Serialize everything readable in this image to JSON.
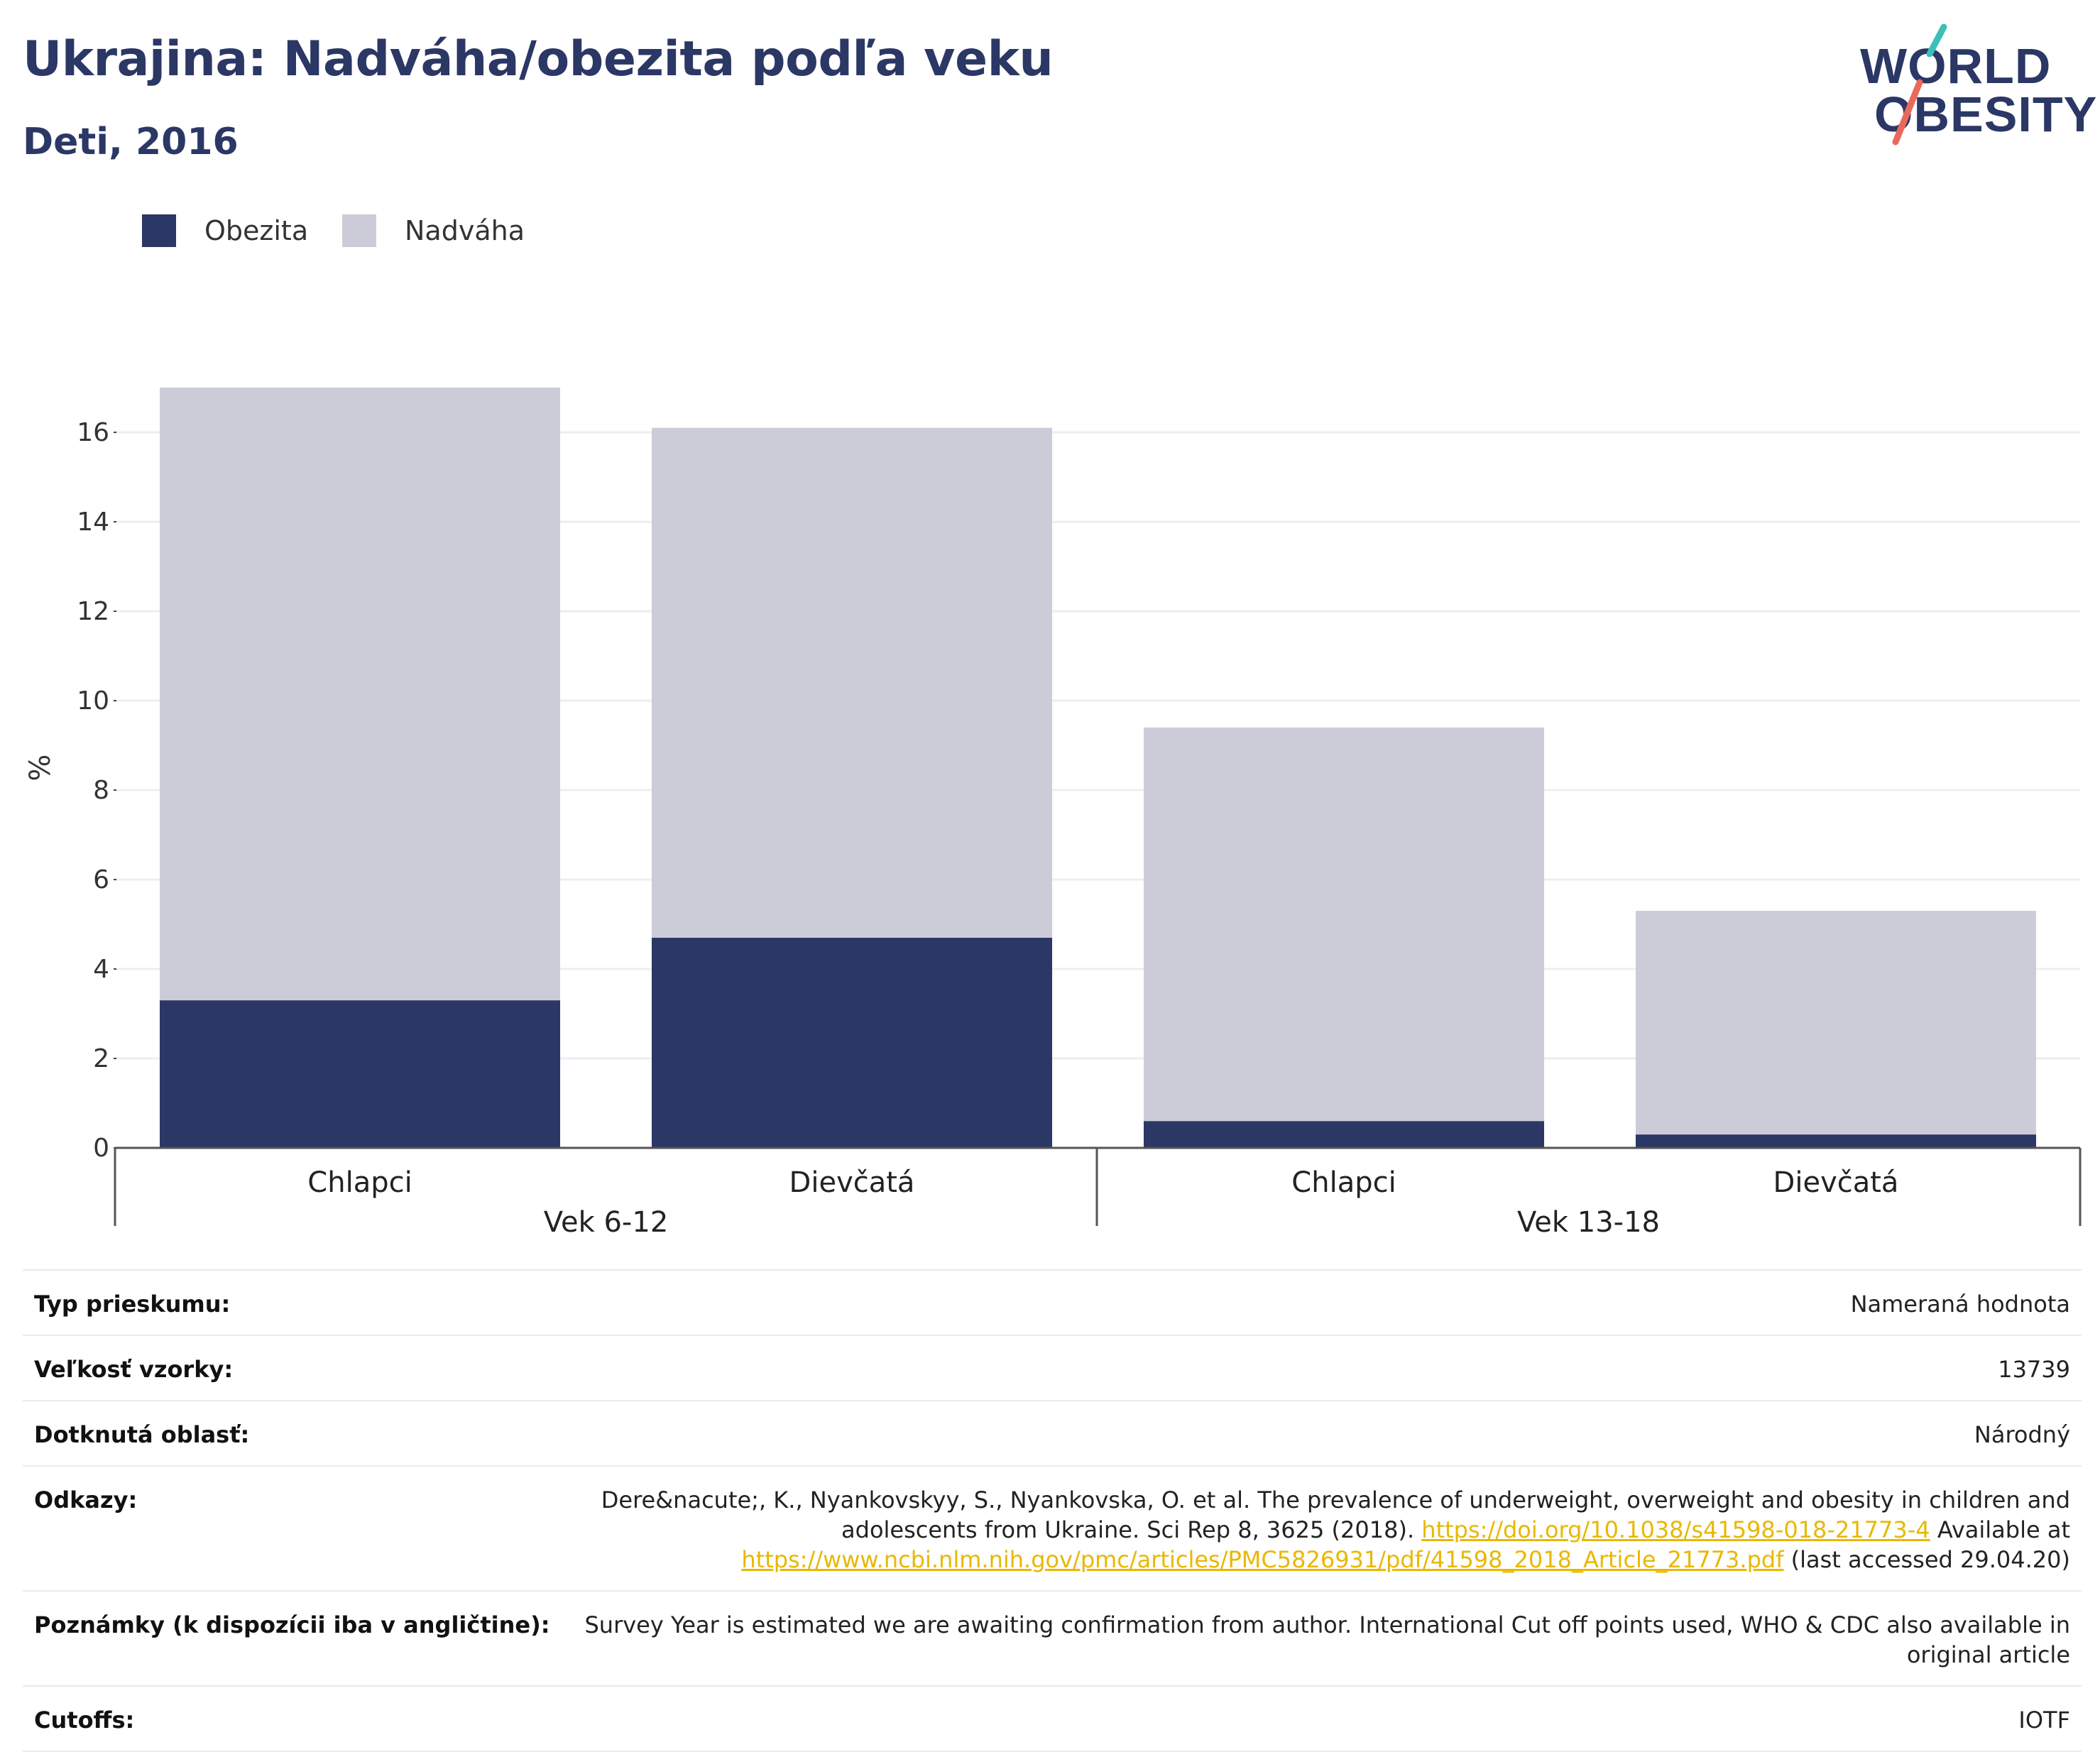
{
  "header": {
    "title": "Ukrajina: Nadváha/obezita podľa veku",
    "subtitle": "Deti, 2016",
    "logo": {
      "line1": "WORLD",
      "line2": "OBESITY"
    }
  },
  "colors": {
    "obesity": "#2b3765",
    "overweight": "#cbccd8",
    "accent_teal": "#3cbfb8",
    "accent_coral": "#e96a5c",
    "link": "#e8b800"
  },
  "chart_data": {
    "type": "bar",
    "stacked": true,
    "ylabel": "%",
    "ylim": [
      0,
      17
    ],
    "yticks": [
      0,
      2,
      4,
      6,
      8,
      10,
      12,
      14,
      16
    ],
    "grid": true,
    "legend_position": "top-left",
    "groups": [
      {
        "label": "Vek 6-12",
        "categories": [
          "Chlapci",
          "Dievčatá"
        ]
      },
      {
        "label": "Vek 13-18",
        "categories": [
          "Chlapci",
          "Dievčatá"
        ]
      }
    ],
    "categories": [
      "Chlapci",
      "Dievčatá",
      "Chlapci",
      "Dievčatá"
    ],
    "series": [
      {
        "name": "Obezita",
        "values": [
          3.3,
          4.7,
          0.6,
          0.3
        ]
      },
      {
        "name": "Nadváha",
        "values": [
          13.7,
          11.4,
          8.8,
          5.0
        ]
      }
    ]
  },
  "details": {
    "survey_type": {
      "label": "Typ prieskumu:",
      "value": "Nameraná hodnota"
    },
    "sample_size": {
      "label": "Veľkosť vzorky:",
      "value": "13739"
    },
    "area": {
      "label": "Dotknutá oblasť:",
      "value": "Národný"
    },
    "references": {
      "label": "Odkazy:",
      "text1": "Dere&nacute;, K., Nyankovskyy, S., Nyankovska, O. et al. The prevalence of underweight, overweight and obesity in children and adolescents from Ukraine. Sci Rep 8, 3625 (2018). ",
      "link1": "https://doi.org/10.1038/s41598-018-21773-4",
      "text2": " Available at ",
      "link2": "https://www.ncbi.nlm.nih.gov/pmc/articles/PMC5826931/pdf/41598_2018_Article_21773.pdf",
      "text3": " (last accessed 29.04.20)"
    },
    "notes": {
      "label": "Poznámky (k dispozícii iba v angličtine):",
      "value": "Survey Year is estimated we are awaiting confirmation from author. International Cut off points used, WHO & CDC also available in original article"
    },
    "cutoffs": {
      "label": "Cutoffs:",
      "value": "IOTF"
    }
  }
}
